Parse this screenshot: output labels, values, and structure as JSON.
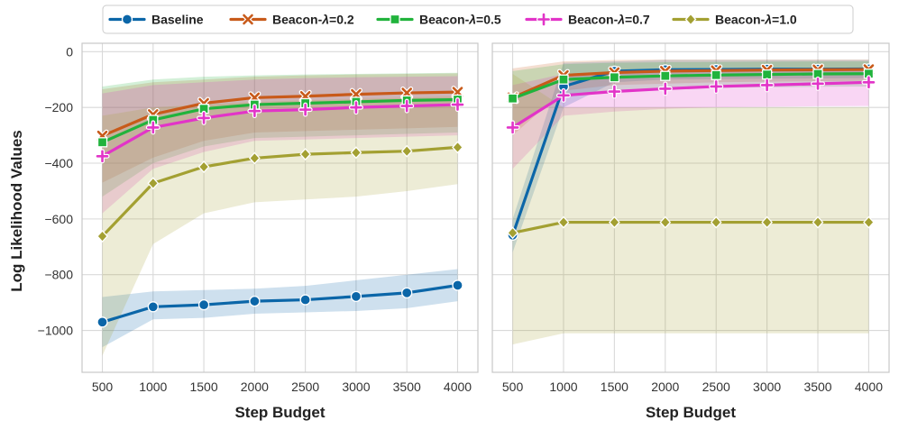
{
  "chart_data": {
    "type": "line",
    "ylabel": "Log Likelihood Values",
    "x": [
      500,
      1000,
      1500,
      2000,
      2500,
      3000,
      3500,
      4000
    ],
    "x_tick_labels": [
      "500",
      "1000",
      "1500",
      "2000",
      "2500",
      "3000",
      "3500",
      "4000"
    ],
    "y_ticks": [
      0,
      -200,
      -400,
      -600,
      -800,
      -1000
    ],
    "y_tick_labels": [
      "0",
      "−200",
      "−400",
      "−600",
      "−800",
      "−1000"
    ],
    "ylim": [
      -1150,
      30
    ],
    "xlim": [
      300,
      4200
    ],
    "grid": true,
    "legend_position": "top",
    "series_styles": [
      {
        "name": "Baseline",
        "label": "Baseline",
        "color": "#0b66a8",
        "marker": "circle"
      },
      {
        "name": "Beacon-λ=0.2",
        "label_prefix": "Beacon-",
        "label_sym": "λ",
        "label_suffix": "=0.2",
        "color": "#c85a1a",
        "marker": "x"
      },
      {
        "name": "Beacon-λ=0.5",
        "label_prefix": "Beacon-",
        "label_sym": "λ",
        "label_suffix": "=0.5",
        "color": "#21b33c",
        "marker": "square"
      },
      {
        "name": "Beacon-λ=0.7",
        "label_prefix": "Beacon-",
        "label_sym": "λ",
        "label_suffix": "=0.7",
        "color": "#e234c8",
        "marker": "plus"
      },
      {
        "name": "Beacon-λ=1.0",
        "label_prefix": "Beacon-",
        "label_sym": "λ",
        "label_suffix": "=1.0",
        "color": "#a3a032",
        "marker": "diamond"
      }
    ],
    "panels": [
      {
        "xlabel": "Step Budget",
        "series": [
          {
            "name": "Baseline",
            "values": [
              -970,
              -915,
              -908,
              -895,
              -890,
              -878,
              -865,
              -838
            ],
            "upper": [
              -880,
              -860,
              -855,
              -850,
              -840,
              -820,
              -800,
              -780
            ],
            "lower": [
              -1060,
              -960,
              -955,
              -940,
              -935,
              -930,
              -920,
              -895
            ]
          },
          {
            "name": "Beacon-λ=0.2",
            "values": [
              -302,
              -225,
              -185,
              -165,
              -160,
              -153,
              -148,
              -145
            ],
            "upper": [
              -135,
              -110,
              -100,
              -90,
              -85,
              -82,
              -80,
              -78
            ],
            "lower": [
              -470,
              -380,
              -320,
              -290,
              -285,
              -280,
              -275,
              -270
            ]
          },
          {
            "name": "Beacon-λ=0.5",
            "values": [
              -325,
              -245,
              -205,
              -190,
              -185,
              -180,
              -175,
              -172
            ],
            "upper": [
              -125,
              -100,
              -90,
              -85,
              -82,
              -80,
              -78,
              -76
            ],
            "lower": [
              -520,
              -400,
              -340,
              -310,
              -305,
              -300,
              -295,
              -290
            ]
          },
          {
            "name": "Beacon-λ=0.7",
            "values": [
              -375,
              -272,
              -238,
              -213,
              -208,
              -200,
              -195,
              -190
            ],
            "upper": [
              -150,
              -120,
              -110,
              -100,
              -95,
              -92,
              -90,
              -88
            ],
            "lower": [
              -580,
              -420,
              -360,
              -320,
              -315,
              -310,
              -305,
              -300
            ]
          },
          {
            "name": "Beacon-λ=1.0",
            "values": [
              -662,
              -472,
              -413,
              -382,
              -368,
              -362,
              -357,
              -343
            ],
            "upper": [
              -230,
              -200,
              -190,
              -180,
              -175,
              -170,
              -165,
              -160
            ],
            "lower": [
              -1090,
              -690,
              -580,
              -540,
              -530,
              -520,
              -500,
              -475
            ]
          }
        ]
      },
      {
        "xlabel": "Step Budget",
        "series": [
          {
            "name": "Baseline",
            "values": [
              -658,
              -125,
              -70,
              -65,
              -64,
              -63,
              -63,
              -62
            ],
            "upper": [
              -600,
              -40,
              -35,
              -30,
              -30,
              -30,
              -30,
              -30
            ],
            "lower": [
              -720,
              -200,
              -110,
              -100,
              -98,
              -97,
              -96,
              -95
            ]
          },
          {
            "name": "Beacon-λ=0.2",
            "values": [
              -165,
              -85,
              -75,
              -70,
              -68,
              -66,
              -65,
              -64
            ],
            "upper": [
              -60,
              -35,
              -30,
              -28,
              -28,
              -28,
              -28,
              -28
            ],
            "lower": [
              -300,
              -140,
              -120,
              -115,
              -110,
              -108,
              -106,
              -105
            ]
          },
          {
            "name": "Beacon-λ=0.5",
            "values": [
              -168,
              -100,
              -92,
              -87,
              -84,
              -82,
              -80,
              -79
            ],
            "upper": [
              -70,
              -45,
              -40,
              -38,
              -37,
              -36,
              -35,
              -35
            ],
            "lower": [
              -280,
              -160,
              -140,
              -135,
              -130,
              -128,
              -126,
              -125
            ]
          },
          {
            "name": "Beacon-λ=0.7",
            "values": [
              -272,
              -157,
              -143,
              -133,
              -125,
              -120,
              -115,
              -110
            ],
            "upper": [
              -120,
              -80,
              -75,
              -70,
              -68,
              -66,
              -65,
              -64
            ],
            "lower": [
              -420,
              -230,
              -215,
              -205,
              -200,
              -198,
              -196,
              -195
            ]
          },
          {
            "name": "Beacon-λ=1.0",
            "values": [
              -650,
              -612,
              -612,
              -612,
              -612,
              -612,
              -612,
              -612
            ],
            "upper": [
              -80,
              -200,
              -200,
              -200,
              -200,
              -200,
              -200,
              -200
            ],
            "lower": [
              -1050,
              -1010,
              -1010,
              -1010,
              -1010,
              -1010,
              -1010,
              -1010
            ]
          }
        ]
      }
    ]
  }
}
